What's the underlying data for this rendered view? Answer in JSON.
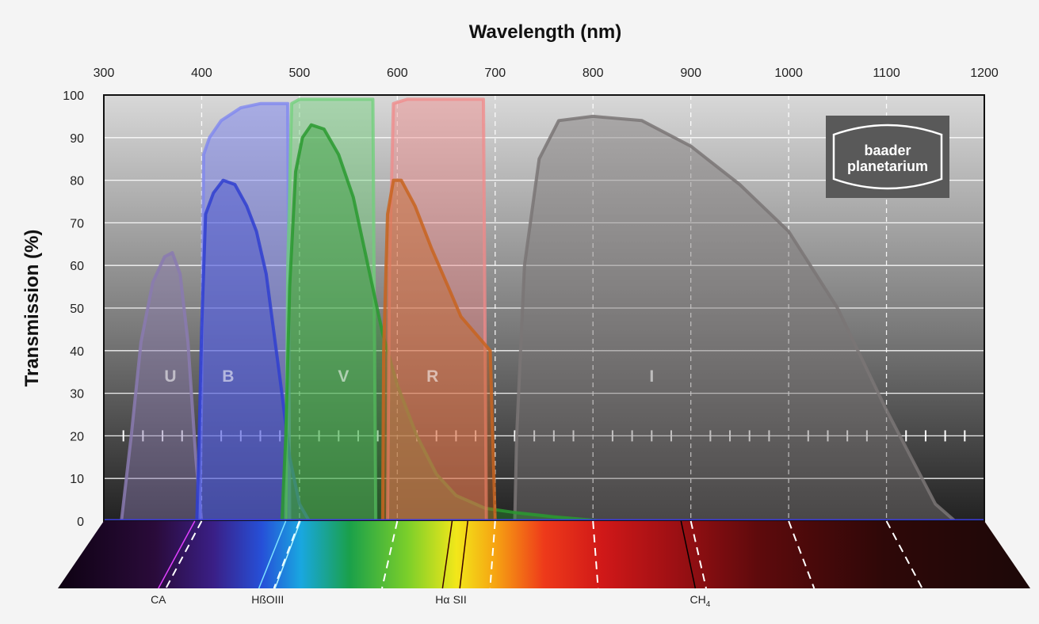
{
  "chart_data": {
    "type": "area",
    "title": "",
    "xlabel": "Wavelength (nm)",
    "ylabel": "Transmission (%)",
    "xlim": [
      300,
      1200
    ],
    "ylim": [
      0,
      100
    ],
    "x_ticks": [
      "300",
      "400",
      "500",
      "600",
      "700",
      "800",
      "900",
      "1000",
      "1100",
      "1200"
    ],
    "y_ticks": [
      "0",
      "10",
      "20",
      "30",
      "40",
      "50",
      "60",
      "70",
      "80",
      "90",
      "100"
    ],
    "grid": true,
    "logo": "baader planetarium",
    "series": [
      {
        "name": "U",
        "color": "#8a7ab0",
        "points": [
          [
            318,
            0
          ],
          [
            328,
            20
          ],
          [
            338,
            42
          ],
          [
            350,
            56
          ],
          [
            362,
            62
          ],
          [
            370,
            63
          ],
          [
            378,
            58
          ],
          [
            386,
            42
          ],
          [
            394,
            15
          ],
          [
            400,
            0
          ]
        ]
      },
      {
        "name": "B",
        "color": "#3040d0",
        "points": [
          [
            395,
            0
          ],
          [
            397,
            15
          ],
          [
            400,
            45
          ],
          [
            404,
            72
          ],
          [
            412,
            77
          ],
          [
            422,
            80
          ],
          [
            434,
            79
          ],
          [
            446,
            74
          ],
          [
            456,
            68
          ],
          [
            466,
            58
          ],
          [
            474,
            44
          ],
          [
            482,
            30
          ],
          [
            490,
            15
          ],
          [
            500,
            4
          ],
          [
            510,
            0
          ]
        ]
      },
      {
        "name": "V",
        "color": "#2a9a30",
        "points": [
          [
            482,
            0
          ],
          [
            486,
            20
          ],
          [
            490,
            55
          ],
          [
            496,
            82
          ],
          [
            503,
            90
          ],
          [
            512,
            93
          ],
          [
            525,
            92
          ],
          [
            540,
            86
          ],
          [
            555,
            76
          ],
          [
            570,
            60
          ],
          [
            585,
            44
          ],
          [
            600,
            32
          ],
          [
            620,
            20
          ],
          [
            640,
            11
          ],
          [
            660,
            6
          ],
          [
            690,
            3
          ],
          [
            720,
            2
          ],
          [
            760,
            1
          ],
          [
            810,
            0
          ]
        ]
      },
      {
        "name": "R",
        "color": "#c86420",
        "points": [
          [
            585,
            0
          ],
          [
            586,
            40
          ],
          [
            590,
            72
          ],
          [
            596,
            80
          ],
          [
            604,
            80
          ],
          [
            618,
            74
          ],
          [
            635,
            64
          ],
          [
            652,
            55
          ],
          [
            665,
            48
          ],
          [
            680,
            44
          ],
          [
            695,
            40
          ],
          [
            700,
            0
          ]
        ]
      },
      {
        "name": "I",
        "color": "#7a7676",
        "points": [
          [
            720,
            0
          ],
          [
            722,
            20
          ],
          [
            730,
            60
          ],
          [
            745,
            85
          ],
          [
            765,
            94
          ],
          [
            800,
            95
          ],
          [
            850,
            94
          ],
          [
            900,
            88
          ],
          [
            950,
            79
          ],
          [
            1000,
            68
          ],
          [
            1050,
            50
          ],
          [
            1100,
            26
          ],
          [
            1150,
            4
          ],
          [
            1170,
            0
          ]
        ]
      }
    ],
    "filter_bands": [
      {
        "name": "B",
        "color": "#7c84f2",
        "points": [
          [
            398,
            0
          ],
          [
            400,
            30
          ],
          [
            402,
            86
          ],
          [
            408,
            90
          ],
          [
            420,
            94
          ],
          [
            440,
            97
          ],
          [
            460,
            98
          ],
          [
            480,
            98
          ],
          [
            488,
            98
          ],
          [
            490,
            0
          ]
        ]
      },
      {
        "name": "V",
        "color": "#6fd07a",
        "points": [
          [
            486,
            0
          ],
          [
            488,
            60
          ],
          [
            492,
            98
          ],
          [
            500,
            99
          ],
          [
            530,
            99
          ],
          [
            560,
            99
          ],
          [
            575,
            99
          ],
          [
            578,
            0
          ]
        ]
      },
      {
        "name": "R",
        "color": "#f28a8a",
        "points": [
          [
            590,
            0
          ],
          [
            592,
            60
          ],
          [
            596,
            98
          ],
          [
            610,
            99
          ],
          [
            650,
            99
          ],
          [
            680,
            99
          ],
          [
            688,
            99
          ],
          [
            691,
            0
          ]
        ]
      }
    ],
    "band_labels": [
      {
        "label": "U",
        "x": 368,
        "y": 34
      },
      {
        "label": "B",
        "x": 427,
        "y": 34
      },
      {
        "label": "V",
        "x": 545,
        "y": 34
      },
      {
        "label": "R",
        "x": 636,
        "y": 34
      },
      {
        "label": "I",
        "x": 860,
        "y": 34
      }
    ],
    "spectral_lines": [
      {
        "label": "CA",
        "x": 393
      },
      {
        "label": "Hß",
        "x": 486
      },
      {
        "label": "OIII",
        "x": 501
      },
      {
        "label": "Hα",
        "x": 656
      },
      {
        "label": "SII",
        "x": 672
      },
      {
        "label": "CH",
        "sub": "4",
        "x": 890
      }
    ]
  }
}
